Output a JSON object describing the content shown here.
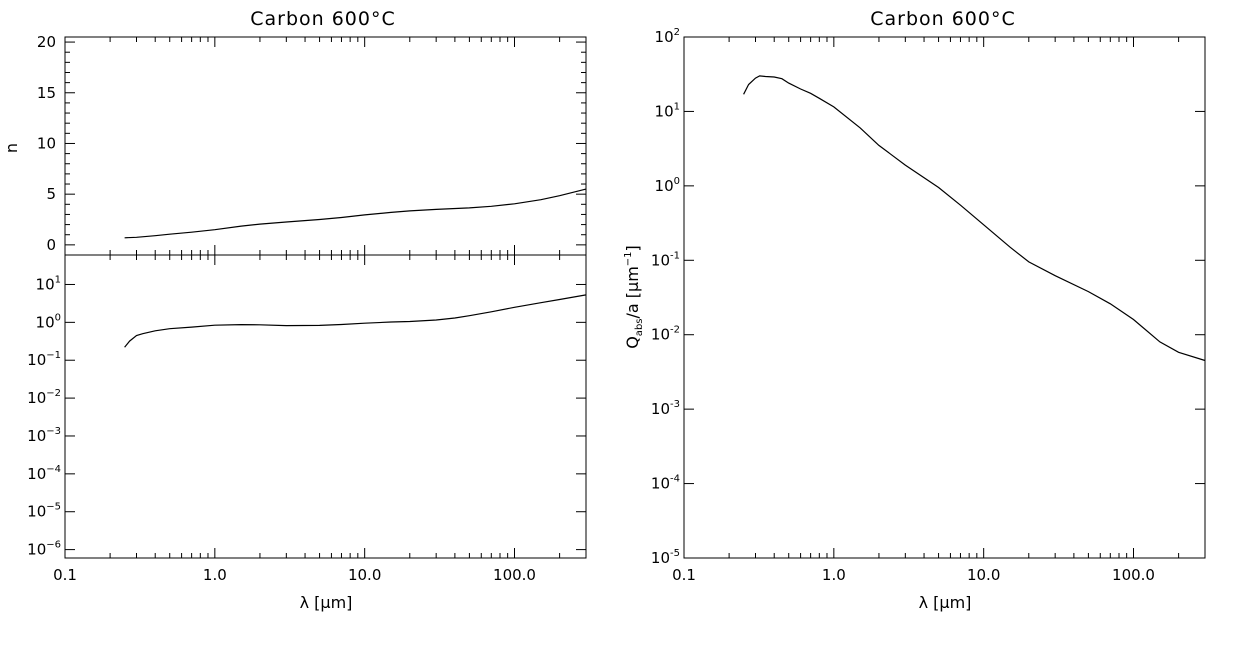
{
  "chart_data": [
    {
      "type": "line",
      "title": "Carbon 600°C",
      "xlabel": "λ [μm]",
      "ylabel": "n",
      "xscale": "log",
      "xlim": [
        0.1,
        300
      ],
      "ylim": [
        -1,
        20.5
      ],
      "x_ticklabels": [
        "0.1",
        "1.0",
        "10.0",
        "100.0"
      ],
      "y_ticklabels": [
        "0",
        "5",
        "10",
        "15",
        "20"
      ],
      "series": [
        {
          "x": [
            0.25,
            0.3,
            0.4,
            0.5,
            0.7,
            1.0,
            1.5,
            2,
            3,
            5,
            7,
            10,
            15,
            20,
            30,
            50,
            70,
            100,
            150,
            200,
            300
          ],
          "y": [
            0.7,
            0.75,
            0.9,
            1.05,
            1.25,
            1.5,
            1.85,
            2.05,
            2.25,
            2.5,
            2.7,
            2.95,
            3.2,
            3.35,
            3.5,
            3.65,
            3.8,
            4.05,
            4.45,
            4.85,
            5.5
          ]
        }
      ]
    },
    {
      "type": "line",
      "title": "",
      "xlabel": "λ [μm]",
      "ylabel": "",
      "xscale": "log",
      "yscale": "log",
      "xlim": [
        0.1,
        300
      ],
      "ylim": [
        6e-07,
        60
      ],
      "y_ticklabels": [
        {
          "base": "10",
          "exp": "1"
        },
        {
          "base": "10",
          "exp": "0"
        },
        {
          "base": "10",
          "exp": "−1"
        },
        {
          "base": "10",
          "exp": "−2"
        },
        {
          "base": "10",
          "exp": "−3"
        },
        {
          "base": "10",
          "exp": "−4"
        },
        {
          "base": "10",
          "exp": "−5"
        },
        {
          "base": "10",
          "exp": "−6"
        }
      ],
      "series": [
        {
          "x": [
            0.25,
            0.27,
            0.3,
            0.33,
            0.4,
            0.5,
            0.7,
            1.0,
            1.5,
            2,
            3,
            5,
            7,
            10,
            15,
            20,
            30,
            40,
            50,
            70,
            100,
            150,
            200,
            300
          ],
          "y": [
            0.22,
            0.32,
            0.45,
            0.5,
            0.6,
            0.68,
            0.75,
            0.84,
            0.87,
            0.86,
            0.82,
            0.83,
            0.88,
            0.95,
            1.02,
            1.05,
            1.15,
            1.3,
            1.5,
            1.9,
            2.5,
            3.3,
            4.0,
            5.3
          ]
        }
      ]
    },
    {
      "type": "line",
      "title": "Carbon 600°C",
      "xlabel": "λ [μm]",
      "ylabel": {
        "main": "Q",
        "sub": "abs",
        "rest": "/a [μm",
        "exp": "−1",
        "close": "]"
      },
      "xscale": "log",
      "yscale": "log",
      "xlim": [
        0.1,
        300
      ],
      "ylim": [
        1e-05,
        100
      ],
      "x_ticklabels": [
        "0.1",
        "1.0",
        "10.0",
        "100.0"
      ],
      "y_ticklabels": [
        {
          "base": "10",
          "exp": "2"
        },
        {
          "base": "10",
          "exp": "1"
        },
        {
          "base": "10",
          "exp": "0"
        },
        {
          "base": "10",
          "exp": "-1"
        },
        {
          "base": "10",
          "exp": "-2"
        },
        {
          "base": "10",
          "exp": "-3"
        },
        {
          "base": "10",
          "exp": "-4"
        },
        {
          "base": "10",
          "exp": "-5"
        }
      ],
      "series": [
        {
          "x": [
            0.25,
            0.27,
            0.3,
            0.32,
            0.35,
            0.4,
            0.45,
            0.5,
            0.6,
            0.7,
            0.8,
            1.0,
            1.5,
            2,
            3,
            5,
            7,
            10,
            15,
            20,
            30,
            50,
            70,
            100,
            150,
            200,
            300
          ],
          "y": [
            17,
            23,
            28,
            30,
            29.5,
            29,
            27.5,
            24,
            20,
            17.5,
            15,
            11.5,
            6,
            3.5,
            1.9,
            0.95,
            0.55,
            0.3,
            0.15,
            0.095,
            0.062,
            0.038,
            0.026,
            0.016,
            0.008,
            0.0058,
            0.0045
          ]
        }
      ]
    }
  ]
}
